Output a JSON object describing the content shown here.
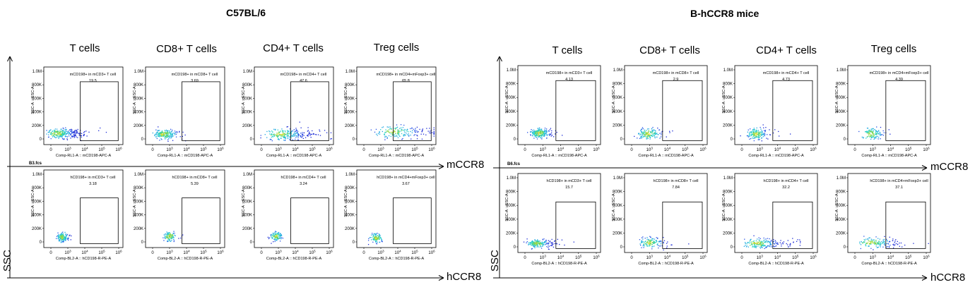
{
  "chart_data": {
    "type": "scatter",
    "x_tick_labels": [
      "0",
      "10^3",
      "10^4",
      "10^5",
      "10^6"
    ],
    "y_tick_labels": [
      "0",
      "200K",
      "400K",
      "600K",
      "800K",
      "1.0M"
    ],
    "y_axis_title": "SSC-A :: SSC-A",
    "shared_y_label": "SSC",
    "groups": [
      {
        "title": "C57BL/6",
        "columns": [
          "T cells",
          "CD8+ T cells",
          "CD4+ T cells",
          "Treg cells"
        ],
        "row_axis_labels": [
          "mCCR8",
          "hCCR8"
        ],
        "sample_label": "B3.fcs",
        "rows": [
          {
            "x_axis_title": "Comp-RL1-A :: mCD198-APC-A",
            "panels": [
              {
                "gate_label": "mCD198+ in mCD3+ T cell",
                "percent": 19.5
              },
              {
                "gate_label": "mCD198+ in mCD8+ T cell",
                "percent": 3.69
              },
              {
                "gate_label": "mCD198+ in mCD4+ T cell",
                "percent": 47.6
              },
              {
                "gate_label": "mCD198+ in mCD4+mFoxp3+ cell",
                "percent": 65.8
              }
            ]
          },
          {
            "x_axis_title": "Comp-BL2-A :: hCD198-R-PE-A",
            "panels": [
              {
                "gate_label": "hCD198+ in mCD3+ T cell",
                "percent": 3.18
              },
              {
                "gate_label": "hCD198+ in mCD8+ T cell",
                "percent": 5.39
              },
              {
                "gate_label": "hCD198+ in mCD4+ T cell",
                "percent": 3.24
              },
              {
                "gate_label": "hCD198+ in mCD4+mFoxp3+ cell",
                "percent": 3.67
              }
            ]
          }
        ]
      },
      {
        "title": "B-hCCR8 mice",
        "columns": [
          "T cells",
          "CD8+ T cells",
          "CD4+ T cells",
          "Treg cells"
        ],
        "row_axis_labels": [
          "mCCR8",
          "hCCR8"
        ],
        "sample_label": "B6.fcs",
        "rows": [
          {
            "x_axis_title": "Comp-RL1-A :: mCD198-APC-A",
            "panels": [
              {
                "gate_label": "mCD198+ in mCD3+ T cell",
                "percent": 4.13
              },
              {
                "gate_label": "mCD198+ in mCD8+ T cell",
                "percent": 2.9
              },
              {
                "gate_label": "mCD198+ in mCD4+ T cell",
                "percent": 4.73
              },
              {
                "gate_label": "mCD198+ in mCD4+mFoxp3+ cell",
                "percent": 4.39
              }
            ]
          },
          {
            "x_axis_title": "Comp-BL2-A :: hCD198-R-PE-A",
            "panels": [
              {
                "gate_label": "hCD198+ in mCD3+ T cell",
                "percent": 15.7
              },
              {
                "gate_label": "hCD198+ in mCD8+ T cell",
                "percent": 7.84
              },
              {
                "gate_label": "hCD198+ in mCD4+ T cell",
                "percent": 32.2
              },
              {
                "gate_label": "hCD198+ in mCD4+mFoxp3+ cell",
                "percent": 37.1
              }
            ]
          }
        ]
      }
    ]
  }
}
